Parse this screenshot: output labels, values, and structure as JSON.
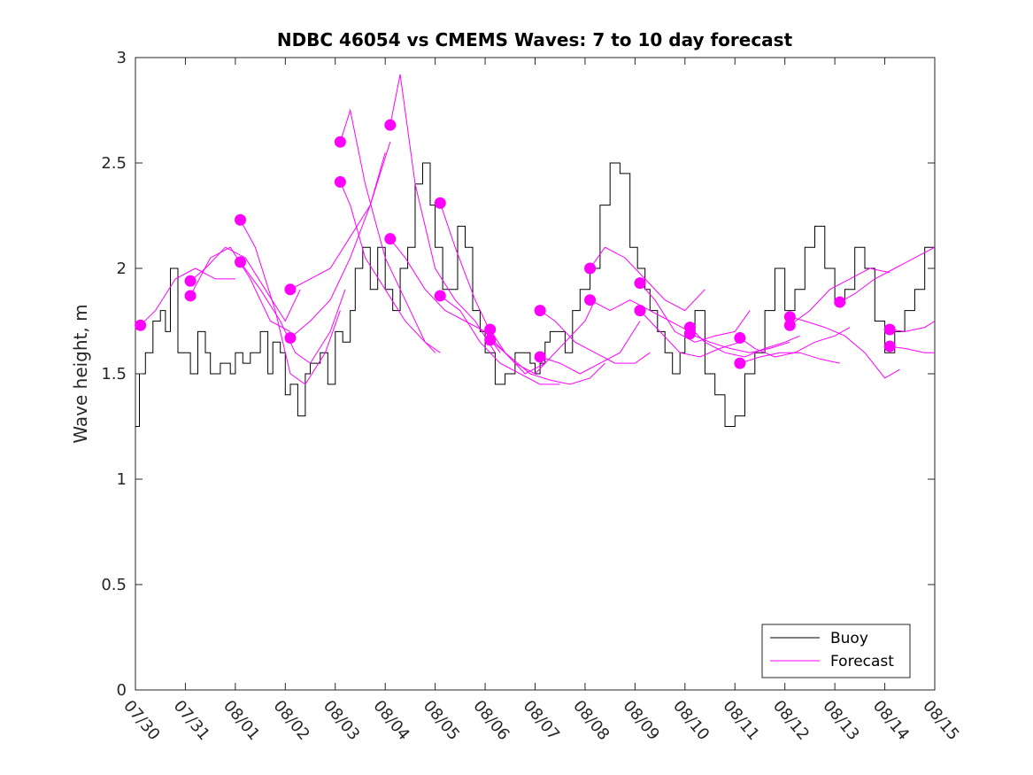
{
  "chart_data": {
    "type": "line",
    "title": "NDBC 46054 vs CMEMS Waves: 7 to 10 day forecast",
    "ylabel": "Wave height, m",
    "xlabel": "",
    "xlim": [
      0,
      16
    ],
    "ylim": [
      0,
      3
    ],
    "x_tick_labels": [
      "07/30",
      "07/31",
      "08/01",
      "08/02",
      "08/03",
      "08/04",
      "08/05",
      "08/06",
      "08/07",
      "08/08",
      "08/09",
      "08/10",
      "08/11",
      "08/12",
      "08/13",
      "08/14",
      "08/15"
    ],
    "y_ticks": [
      0,
      0.5,
      1,
      1.5,
      2,
      2.5,
      3
    ],
    "y_tick_labels": [
      "0",
      "0.5",
      "1",
      "1.5",
      "2",
      "2.5",
      "3"
    ],
    "grid": false,
    "legend": {
      "placement": "bottom-right",
      "entries": [
        {
          "label": "Buoy",
          "color": "#000000"
        },
        {
          "label": "Forecast",
          "color": "#ff00ff"
        }
      ]
    },
    "series": [
      {
        "name": "Buoy",
        "color": "#000000",
        "x": [
          0.0,
          0.08,
          0.2,
          0.35,
          0.5,
          0.6,
          0.7,
          0.85,
          1.0,
          1.1,
          1.25,
          1.4,
          1.5,
          1.7,
          1.9,
          2.0,
          2.15,
          2.3,
          2.5,
          2.65,
          2.75,
          2.9,
          3.0,
          3.1,
          3.25,
          3.4,
          3.5,
          3.7,
          3.85,
          4.0,
          4.15,
          4.3,
          4.4,
          4.55,
          4.7,
          4.85,
          5.0,
          5.15,
          5.3,
          5.45,
          5.6,
          5.75,
          5.9,
          6.0,
          6.15,
          6.3,
          6.45,
          6.6,
          6.75,
          6.9,
          7.0,
          7.2,
          7.4,
          7.6,
          7.8,
          7.9,
          8.0,
          8.1,
          8.2,
          8.3,
          8.45,
          8.6,
          8.75,
          8.9,
          9.1,
          9.3,
          9.5,
          9.7,
          9.9,
          10.05,
          10.2,
          10.3,
          10.45,
          10.6,
          10.75,
          10.9,
          11.0,
          11.2,
          11.4,
          11.6,
          11.8,
          12.0,
          12.2,
          12.4,
          12.6,
          12.8,
          13.0,
          13.2,
          13.4,
          13.6,
          13.8,
          14.0,
          14.2,
          14.4,
          14.6,
          14.8,
          15.0,
          15.2,
          15.4,
          15.6,
          15.8,
          16.0
        ],
        "values": [
          1.25,
          1.5,
          1.6,
          1.75,
          1.8,
          1.7,
          2.0,
          1.6,
          1.6,
          1.5,
          1.7,
          1.6,
          1.5,
          1.55,
          1.5,
          1.6,
          1.55,
          1.6,
          1.7,
          1.5,
          1.65,
          1.6,
          1.4,
          1.45,
          1.3,
          1.5,
          1.55,
          1.6,
          1.45,
          1.7,
          1.65,
          1.8,
          2.0,
          2.1,
          1.9,
          2.1,
          1.9,
          1.8,
          2.0,
          2.1,
          2.4,
          2.5,
          2.3,
          2.1,
          1.9,
          1.9,
          2.2,
          2.1,
          1.8,
          1.7,
          1.6,
          1.45,
          1.5,
          1.6,
          1.6,
          1.55,
          1.5,
          1.55,
          1.65,
          1.7,
          1.7,
          1.6,
          1.8,
          1.9,
          2.0,
          2.3,
          2.5,
          2.45,
          2.1,
          2.0,
          1.9,
          1.8,
          1.7,
          1.6,
          1.5,
          1.6,
          1.7,
          1.8,
          1.5,
          1.4,
          1.25,
          1.3,
          1.5,
          1.6,
          1.8,
          2.0,
          1.8,
          1.9,
          2.1,
          2.2,
          2.0,
          1.85,
          1.9,
          2.1,
          2.0,
          1.75,
          1.6,
          1.7,
          1.8,
          1.9,
          2.1,
          2.0
        ]
      },
      {
        "name": "Forecast",
        "color": "#ff00ff",
        "runs": [
          {
            "x": [
              0.1,
              0.4,
              0.8,
              1.2,
              1.6,
              2.0
            ],
            "values": [
              1.73,
              1.8,
              1.95,
              2.0,
              1.95,
              1.95
            ]
          },
          {
            "x": [
              1.1,
              1.4,
              1.8,
              2.2,
              2.6,
              3.0,
              3.3
            ],
            "values": [
              1.94,
              2.0,
              2.1,
              2.05,
              1.9,
              1.75,
              1.9
            ]
          },
          {
            "x": [
              1.1,
              1.5,
              1.9,
              2.3,
              2.7,
              3.1
            ],
            "values": [
              1.87,
              2.05,
              2.1,
              1.95,
              1.75,
              1.7
            ]
          },
          {
            "x": [
              2.1,
              2.4,
              2.8,
              3.1,
              3.4,
              3.8,
              4.1
            ],
            "values": [
              2.23,
              2.1,
              1.8,
              1.5,
              1.45,
              1.6,
              1.8
            ]
          },
          {
            "x": [
              2.1,
              2.5,
              2.9,
              3.2,
              3.5,
              3.9,
              4.2
            ],
            "values": [
              2.03,
              1.9,
              1.75,
              1.6,
              1.55,
              1.7,
              1.9
            ]
          },
          {
            "x": [
              3.1,
              3.5,
              3.9,
              4.3,
              4.7,
              5.1
            ],
            "values": [
              1.9,
              1.95,
              2.0,
              2.15,
              2.3,
              2.6
            ]
          },
          {
            "x": [
              3.1,
              3.5,
              3.9,
              4.3,
              4.7,
              5.0
            ],
            "values": [
              1.67,
              1.75,
              1.85,
              2.05,
              2.3,
              2.55
            ]
          },
          {
            "x": [
              4.1,
              4.3,
              4.6,
              5.0,
              5.4,
              5.8,
              6.0
            ],
            "values": [
              2.6,
              2.75,
              2.4,
              2.05,
              1.85,
              1.65,
              1.6
            ]
          },
          {
            "x": [
              4.1,
              4.3,
              4.6,
              5.0,
              5.4,
              5.8,
              6.1
            ],
            "values": [
              2.41,
              2.3,
              2.05,
              1.9,
              1.75,
              1.65,
              1.6
            ]
          },
          {
            "x": [
              5.1,
              5.3,
              5.6,
              6.0,
              6.4,
              6.8,
              7.2
            ],
            "values": [
              2.68,
              2.92,
              2.4,
              2.0,
              1.85,
              1.75,
              1.6
            ]
          },
          {
            "x": [
              5.1,
              5.4,
              5.8,
              6.2,
              6.6,
              7.0,
              7.3
            ],
            "values": [
              2.14,
              2.05,
              1.9,
              1.8,
              1.75,
              1.7,
              1.6
            ]
          },
          {
            "x": [
              6.1,
              6.4,
              6.8,
              7.2,
              7.6,
              8.0,
              8.2
            ],
            "values": [
              2.31,
              2.1,
              1.85,
              1.65,
              1.55,
              1.5,
              1.55
            ]
          },
          {
            "x": [
              6.1,
              6.5,
              6.9,
              7.3,
              7.7,
              8.1,
              8.5
            ],
            "values": [
              1.87,
              1.8,
              1.65,
              1.55,
              1.5,
              1.45,
              1.45
            ]
          },
          {
            "x": [
              7.1,
              7.4,
              7.8,
              8.2,
              8.6,
              9.0,
              9.2
            ],
            "values": [
              1.71,
              1.6,
              1.5,
              1.55,
              1.65,
              1.75,
              1.85
            ]
          },
          {
            "x": [
              7.1,
              7.5,
              7.9,
              8.3,
              8.7,
              9.1,
              9.4
            ],
            "values": [
              1.66,
              1.58,
              1.5,
              1.47,
              1.45,
              1.48,
              1.55
            ]
          },
          {
            "x": [
              8.1,
              8.4,
              8.8,
              9.2,
              9.6,
              10.0,
              10.3
            ],
            "values": [
              1.8,
              1.75,
              1.65,
              1.6,
              1.55,
              1.55,
              1.6
            ]
          },
          {
            "x": [
              8.1,
              8.5,
              8.9,
              9.3,
              9.7,
              10.1
            ],
            "values": [
              1.58,
              1.55,
              1.5,
              1.55,
              1.6,
              1.75
            ]
          },
          {
            "x": [
              9.1,
              9.4,
              9.8,
              10.2,
              10.6,
              11.0,
              11.4
            ],
            "values": [
              2.0,
              2.1,
              2.05,
              1.95,
              1.85,
              1.8,
              1.9
            ]
          },
          {
            "x": [
              9.1,
              9.5,
              9.9,
              10.3,
              10.7,
              11.1
            ],
            "values": [
              1.85,
              1.8,
              1.85,
              1.8,
              1.75,
              1.7
            ]
          },
          {
            "x": [
              10.1,
              10.4,
              10.8,
              11.2,
              11.6,
              12.0,
              12.3
            ],
            "values": [
              1.93,
              1.85,
              1.7,
              1.65,
              1.68,
              1.7,
              1.8
            ]
          },
          {
            "x": [
              10.1,
              10.5,
              10.9,
              11.3,
              11.7,
              12.1
            ],
            "values": [
              1.8,
              1.7,
              1.6,
              1.58,
              1.62,
              1.65
            ]
          },
          {
            "x": [
              11.1,
              11.4,
              11.8,
              12.2,
              12.6,
              13.0,
              13.3
            ],
            "values": [
              1.72,
              1.65,
              1.6,
              1.58,
              1.62,
              1.65,
              1.68
            ]
          },
          {
            "x": [
              11.1,
              11.5,
              11.9,
              12.3,
              12.7,
              13.1
            ],
            "values": [
              1.69,
              1.65,
              1.62,
              1.6,
              1.62,
              1.65
            ]
          },
          {
            "x": [
              12.1,
              12.4,
              12.8,
              13.2,
              13.6,
              14.0,
              14.3
            ],
            "values": [
              1.67,
              1.62,
              1.58,
              1.6,
              1.65,
              1.68,
              1.72
            ]
          },
          {
            "x": [
              12.1,
              12.5,
              12.9,
              13.3,
              13.7,
              14.1
            ],
            "values": [
              1.55,
              1.58,
              1.6,
              1.6,
              1.57,
              1.55
            ]
          },
          {
            "x": [
              13.1,
              13.4,
              13.8,
              14.2,
              14.6,
              15.0,
              15.3
            ],
            "values": [
              1.77,
              1.75,
              1.72,
              1.68,
              1.6,
              1.48,
              1.52
            ]
          },
          {
            "x": [
              13.1,
              13.5,
              13.9,
              14.3,
              14.7,
              15.1
            ],
            "values": [
              1.73,
              1.8,
              1.9,
              1.95,
              2.0,
              1.98
            ]
          },
          {
            "x": [
              14.1,
              14.4,
              14.8,
              15.2,
              15.6,
              16.0
            ],
            "values": [
              1.84,
              1.88,
              1.95,
              2.0,
              2.05,
              2.1
            ]
          },
          {
            "x": [
              15.1,
              15.4,
              15.8,
              16.0
            ],
            "values": [
              1.71,
              1.7,
              1.72,
              1.75
            ]
          },
          {
            "x": [
              15.1,
              15.4,
              15.8,
              16.0
            ],
            "values": [
              1.63,
              1.62,
              1.6,
              1.6
            ]
          }
        ]
      }
    ]
  }
}
